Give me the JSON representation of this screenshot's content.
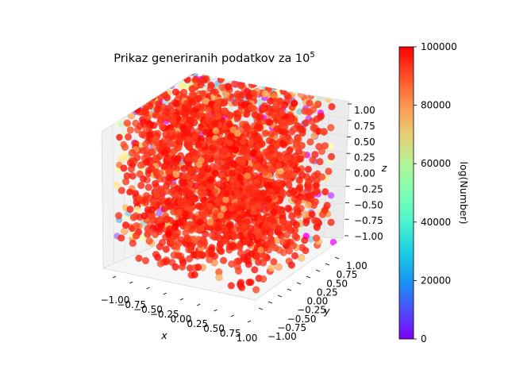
{
  "chart_data": {
    "type": "scatter",
    "projection": "3d",
    "title": {
      "text": "Prikaz generiranih podatkov za 10",
      "superscript": "5"
    },
    "xlabel": "x",
    "ylabel": "y",
    "zlabel": "z",
    "xlim": [
      -1.0,
      1.0
    ],
    "ylim": [
      -1.0,
      1.0
    ],
    "zlim": [
      -1.0,
      1.0
    ],
    "x_ticks": [
      "−1.00",
      "−0.75",
      "−0.50",
      "−0.25",
      "0.00",
      "0.25",
      "0.50",
      "0.75",
      "1.00"
    ],
    "y_ticks": [
      "−1.00",
      "−0.75",
      "−0.50",
      "−0.25",
      "0.00",
      "0.25",
      "0.50",
      "0.75",
      "1.00"
    ],
    "z_ticks": [
      "−1.00",
      "−0.75",
      "−0.50",
      "−0.25",
      "0.00",
      "0.25",
      "0.50",
      "0.75",
      "1.00"
    ],
    "point_count": 100000,
    "distribution": "uniform in cube [-1,1]^3",
    "colormap": "rainbow",
    "color_value_range": [
      0,
      100000
    ],
    "colorbar": {
      "label": "log(Number)",
      "ticks": [
        "0",
        "20000",
        "40000",
        "60000",
        "80000",
        "100000"
      ],
      "tick_values": [
        0,
        20000,
        40000,
        60000,
        80000,
        100000
      ]
    },
    "grid": true,
    "colors": {
      "dominant_point_color": "#ff2a0e",
      "pane": "#f2f2f2"
    }
  }
}
